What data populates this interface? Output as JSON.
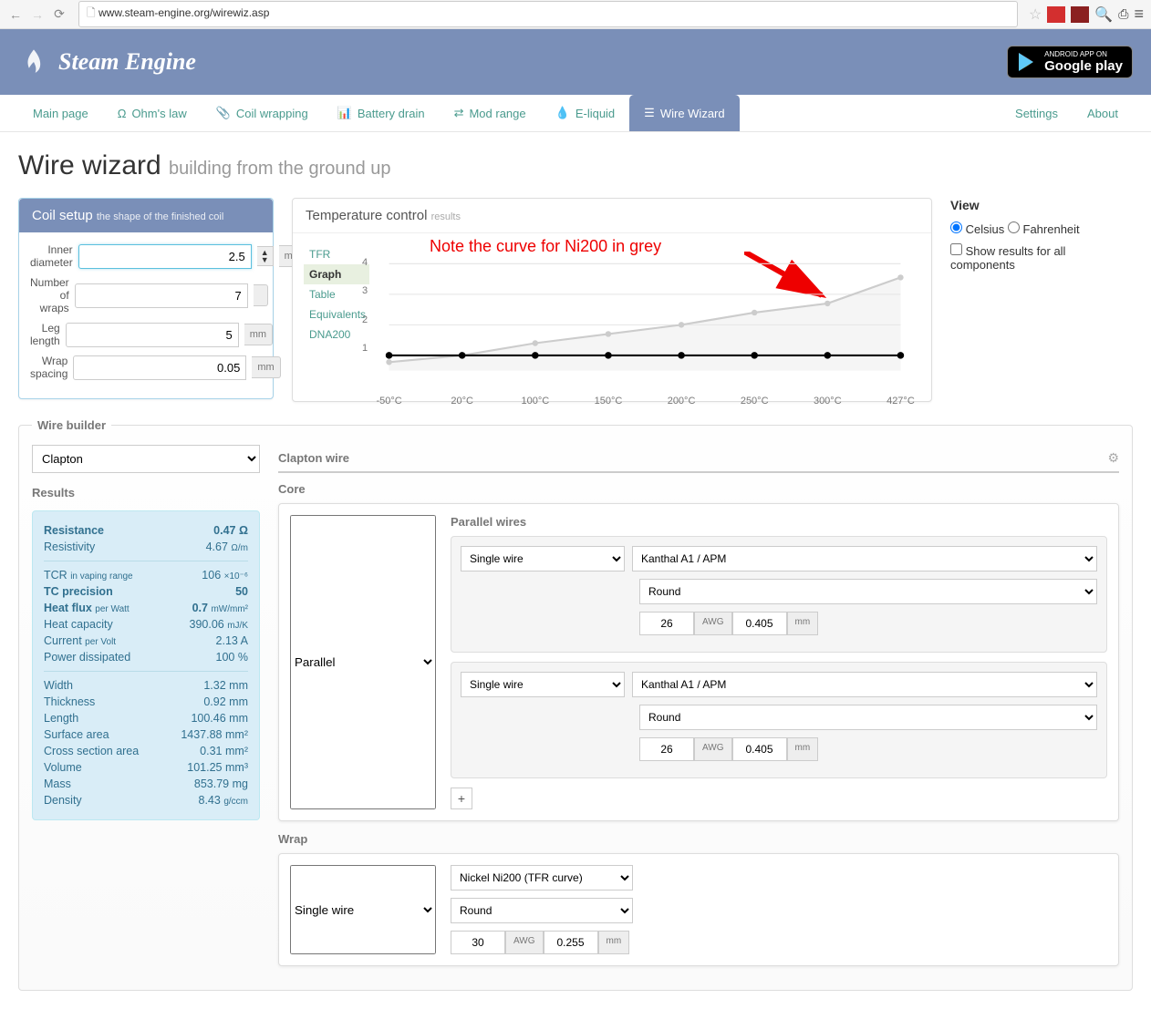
{
  "browser": {
    "url": "www.steam-engine.org/wirewiz.asp"
  },
  "brand": {
    "name": "Steam Engine"
  },
  "play": {
    "top": "ANDROID APP ON",
    "bot": "Google play"
  },
  "nav": {
    "main": "Main page",
    "ohms": "Ohm's law",
    "coil": "Coil wrapping",
    "batt": "Battery drain",
    "mod": "Mod range",
    "eliq": "E-liquid",
    "wiz": "Wire Wizard",
    "set": "Settings",
    "about": "About"
  },
  "title": {
    "h1": "Wire wizard",
    "sub": "building from the ground up"
  },
  "coil": {
    "heading": "Coil setup",
    "sub": "the shape of the finished coil",
    "inner_l": "Inner diameter",
    "inner_v": "2.5",
    "inner_u": "mm",
    "wraps_l": "Number of wraps",
    "wraps_v": "7",
    "leg_l": "Leg length",
    "leg_v": "5",
    "leg_u": "mm",
    "space_l": "Wrap spacing",
    "space_v": "0.05",
    "space_u": "mm"
  },
  "temp": {
    "heading": "Temperature control",
    "sub": "results",
    "tabs": {
      "tfr": "TFR",
      "graph": "Graph",
      "table": "Table",
      "eq": "Equivalents",
      "dna": "DNA200"
    },
    "annot": "Note the curve for Ni200 in grey",
    "chart": {
      "ytick": [
        1,
        2,
        3,
        4
      ],
      "xtick": [
        "-50°C",
        "20°C",
        "100°C",
        "150°C",
        "200°C",
        "250°C",
        "300°C",
        "427°C"
      ],
      "flat_y": 1.0,
      "curve_y": [
        0.78,
        1.0,
        1.4,
        1.7,
        2.0,
        2.4,
        2.7,
        3.55
      ],
      "colors": {
        "flat": "#000000",
        "curve": "#cccccc",
        "grid": "#e5e5e5",
        "bg": "#f5f5f5"
      }
    }
  },
  "view": {
    "heading": "View",
    "celsius": "Celsius",
    "fahr": "Fahrenheit",
    "show": "Show results for all components"
  },
  "builder": {
    "legend": "Wire builder",
    "type": "Clapton",
    "results_h": "Results",
    "res": {
      "resistance_l": "Resistance",
      "resistance_v": "0.47",
      "resistance_u": "Ω",
      "resistivity_l": "Resistivity",
      "resistivity_v": "4.67",
      "resistivity_u": "Ω/m",
      "tcr_l": "TCR",
      "tcr_s": "in vaping range",
      "tcr_v": "106",
      "tcr_u": "×10⁻⁶",
      "tcp_l": "TC precision",
      "tcp_v": "50",
      "hf_l": "Heat flux",
      "hf_s": "per Watt",
      "hf_v": "0.7",
      "hf_u": "mW/mm²",
      "hc_l": "Heat capacity",
      "hc_v": "390.06",
      "hc_u": "mJ/K",
      "cur_l": "Current",
      "cur_s": "per Volt",
      "cur_v": "2.13",
      "cur_u": "A",
      "pd_l": "Power dissipated",
      "pd_v": "100",
      "pd_u": "%",
      "w_l": "Width",
      "w_v": "1.32",
      "w_u": "mm",
      "th_l": "Thickness",
      "th_v": "0.92",
      "th_u": "mm",
      "len_l": "Length",
      "len_v": "100.46",
      "len_u": "mm",
      "sa_l": "Surface area",
      "sa_v": "1437.88",
      "sa_u": "mm²",
      "csa_l": "Cross section area",
      "csa_v": "0.31",
      "csa_u": "mm²",
      "vol_l": "Volume",
      "vol_v": "101.25",
      "vol_u": "mm³",
      "mass_l": "Mass",
      "mass_v": "853.79",
      "mass_u": "mg",
      "den_l": "Density",
      "den_v": "8.43",
      "den_u": "g/ccm"
    },
    "clapton_h": "Clapton wire",
    "core_h": "Core",
    "parallel": "Parallel",
    "pw_h": "Parallel wires",
    "single": "Single wire",
    "mat1": "Kanthal A1 / APM",
    "shape": "Round",
    "awg1": "26",
    "awg_l": "AWG",
    "mm1": "0.405",
    "mm_l": "mm",
    "wrap_h": "Wrap",
    "mat2": "Nickel Ni200 (TFR curve)",
    "awg2": "30",
    "mm2": "0.255",
    "add": "+"
  }
}
